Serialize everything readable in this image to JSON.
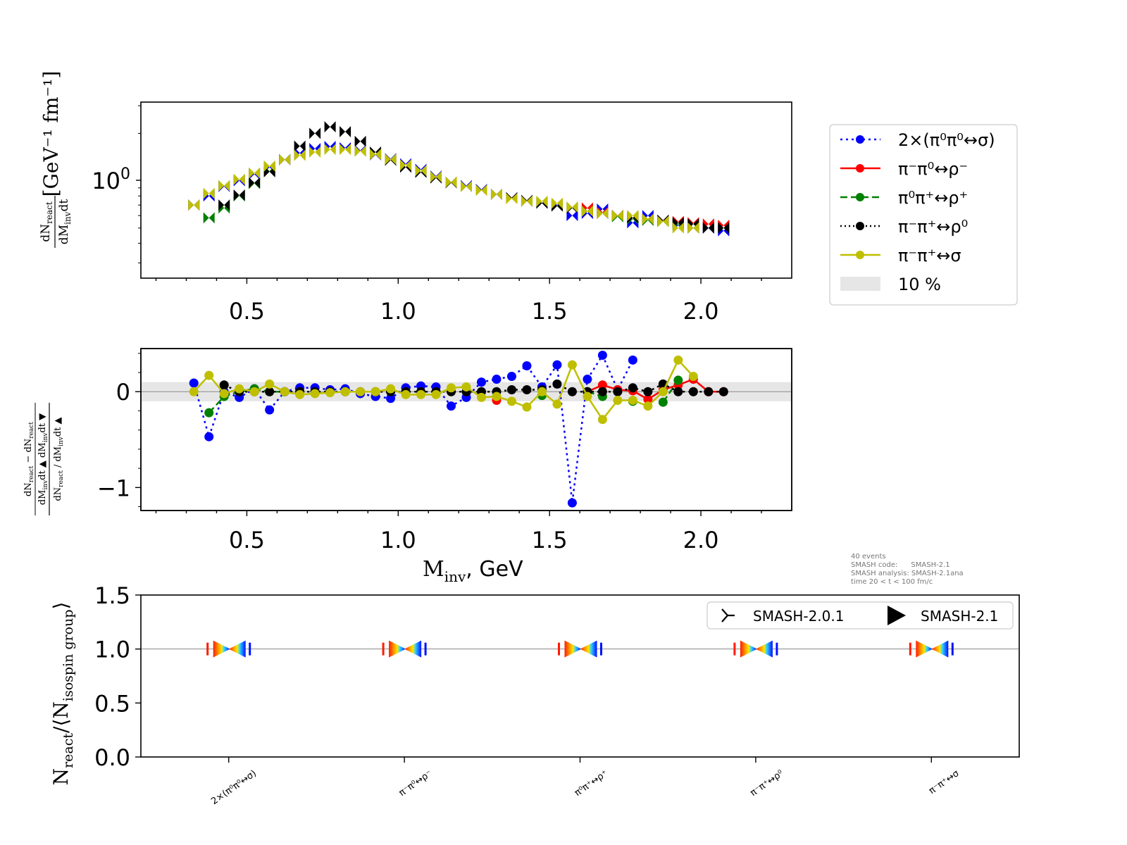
{
  "colors": {
    "sigma0": "#0000ff",
    "rho_minus": "#ff0000",
    "rho_plus": "#008000",
    "rho0": "#000000",
    "sigma_pm": "#bfbf00",
    "band": "#e6e6e6"
  },
  "chart_data": [
    {
      "type": "scatter",
      "panel": "top",
      "title": "",
      "ylabel": "dN_react/dM_inv dt [GeV^-1 fm^-1]",
      "ylabel_unit": "[GeV⁻¹ fm⁻¹]",
      "yscale": "log",
      "ytick_label": "10",
      "ytick_exp": "0",
      "xlim": [
        0.15,
        2.3
      ],
      "ylim_log10": [
        -0.62,
        0.5
      ],
      "x_ticks": [
        "0.5",
        "1.0",
        "1.5",
        "2.0"
      ],
      "x": [
        0.325,
        0.375,
        0.425,
        0.475,
        0.525,
        0.575,
        0.625,
        0.675,
        0.725,
        0.775,
        0.825,
        0.875,
        0.925,
        0.975,
        1.025,
        1.075,
        1.125,
        1.175,
        1.225,
        1.275,
        1.325,
        1.375,
        1.425,
        1.475,
        1.525,
        1.575,
        1.625,
        1.675,
        1.725,
        1.775,
        1.825,
        1.875,
        1.925,
        1.975,
        2.025,
        2.075
      ],
      "series": [
        {
          "name": "sigma0",
          "label": "2×(π⁰π⁰↔σ)",
          "color": "#0000ff",
          "values": [
            0.7,
            0.8,
            0.92,
            1.0,
            1.1,
            1.22,
            1.36,
            1.5,
            1.6,
            1.65,
            1.62,
            1.56,
            1.46,
            1.38,
            1.28,
            1.18,
            1.07,
            0.98,
            0.93,
            0.88,
            0.82,
            0.78,
            0.74,
            0.72,
            0.7,
            0.6,
            0.62,
            0.66,
            0.6,
            0.54,
            0.6,
            0.56,
            0.52,
            0.5,
            0.5,
            0.48
          ]
        },
        {
          "name": "rho_minus",
          "label": "π⁻π⁰↔ρ⁻",
          "color": "#ff0000",
          "values": [
            null,
            null,
            null,
            null,
            null,
            null,
            null,
            null,
            null,
            null,
            null,
            null,
            null,
            null,
            null,
            null,
            null,
            null,
            null,
            null,
            null,
            null,
            null,
            null,
            null,
            null,
            0.67,
            0.63,
            0.6,
            0.58,
            0.57,
            0.56,
            0.55,
            0.54,
            0.53,
            0.52
          ]
        },
        {
          "name": "rho_plus",
          "label": "π⁰π⁺↔ρ⁺",
          "color": "#008000",
          "values": [
            null,
            0.58,
            0.67,
            0.8,
            0.96,
            1.15,
            null,
            null,
            null,
            null,
            null,
            null,
            null,
            null,
            null,
            null,
            null,
            null,
            null,
            null,
            null,
            null,
            null,
            null,
            null,
            null,
            0.64,
            null,
            0.59,
            0.57,
            0.56,
            0.55,
            0.53,
            null,
            null,
            null
          ]
        },
        {
          "name": "rho0",
          "label": "π⁻π⁺↔ρ⁰",
          "color": "#000000",
          "values": [
            null,
            null,
            0.7,
            0.81,
            0.97,
            1.14,
            1.36,
            1.66,
            2.0,
            2.2,
            2.05,
            1.78,
            1.52,
            1.35,
            1.22,
            1.13,
            1.04,
            0.97,
            0.92,
            0.87,
            0.82,
            0.78,
            0.75,
            0.72,
            0.69,
            0.67,
            0.64,
            0.62,
            0.6,
            0.58,
            0.57,
            0.56,
            0.54,
            0.53,
            0.5,
            0.5
          ]
        },
        {
          "name": "sigma_pm",
          "label": "π⁻π⁺↔σ",
          "color": "#bfbf00",
          "values": [
            0.7,
            0.83,
            0.93,
            1.02,
            1.12,
            1.24,
            1.36,
            1.45,
            1.52,
            1.58,
            1.58,
            1.54,
            1.47,
            1.37,
            1.26,
            1.16,
            1.06,
            0.98,
            0.92,
            0.87,
            0.82,
            0.77,
            0.74,
            0.74,
            0.72,
            0.68,
            0.64,
            0.62,
            0.6,
            0.6,
            0.57,
            0.55,
            0.5,
            0.5,
            null,
            null
          ]
        }
      ],
      "legend": {
        "entries": [
          "2×(π⁰π⁰↔σ)",
          "π⁻π⁰↔ρ⁻",
          "π⁰π⁺↔ρ⁺",
          "π⁻π⁺↔ρ⁰",
          "π⁻π⁺↔σ",
          "10 %"
        ],
        "placement": "right outside"
      }
    },
    {
      "type": "line",
      "panel": "middle",
      "ylabel": "(dN▲ - dN▼)/dN▲",
      "xlabel": "M",
      "xlabel_sub": "inv",
      "xlabel_unit": ", GeV",
      "xlim": [
        0.15,
        2.3
      ],
      "ylim": [
        -1.24,
        0.45
      ],
      "y_ticks": [
        "0",
        "−1"
      ],
      "x_ticks": [
        "0.5",
        "1.0",
        "1.5",
        "2.0"
      ],
      "band": [
        -0.1,
        0.1
      ],
      "x": [
        0.325,
        0.375,
        0.425,
        0.475,
        0.525,
        0.575,
        0.625,
        0.675,
        0.725,
        0.775,
        0.825,
        0.875,
        0.925,
        0.975,
        1.025,
        1.075,
        1.125,
        1.175,
        1.225,
        1.275,
        1.325,
        1.375,
        1.425,
        1.475,
        1.525,
        1.575,
        1.625,
        1.675,
        1.725,
        1.775,
        1.825,
        1.875,
        1.925,
        1.975,
        2.025,
        2.075
      ],
      "series": [
        {
          "name": "sigma0",
          "color": "#0000ff",
          "style": "dotted",
          "values": [
            0.09,
            -0.47,
            0.0,
            -0.06,
            0.03,
            -0.19,
            0.0,
            0.04,
            0.04,
            0.02,
            0.03,
            -0.02,
            -0.05,
            -0.07,
            0.04,
            0.06,
            0.05,
            -0.15,
            -0.06,
            0.1,
            0.13,
            0.16,
            0.27,
            0.05,
            0.28,
            -1.16,
            0.13,
            0.38,
            0.02,
            0.33,
            null,
            null,
            null,
            null,
            null,
            null
          ]
        },
        {
          "name": "rho_minus",
          "color": "#ff0000",
          "style": "solid",
          "values": [
            null,
            null,
            null,
            null,
            null,
            null,
            null,
            null,
            null,
            null,
            null,
            null,
            null,
            null,
            null,
            null,
            null,
            null,
            null,
            null,
            -0.09,
            null,
            null,
            null,
            null,
            null,
            0.0,
            0.07,
            0.02,
            0.01,
            -0.08,
            0.02,
            0.07,
            0.13,
            0.0,
            0.0
          ]
        },
        {
          "name": "rho_plus",
          "color": "#008000",
          "style": "dashed",
          "values": [
            null,
            -0.22,
            -0.05,
            0.0,
            0.03,
            0.0,
            0.0,
            0.0,
            null,
            null,
            null,
            null,
            null,
            null,
            null,
            null,
            null,
            null,
            null,
            null,
            null,
            null,
            null,
            -0.04,
            null,
            null,
            0.0,
            -0.05,
            null,
            -0.1,
            null,
            -0.11,
            0.12,
            null,
            null,
            null
          ]
        },
        {
          "name": "rho0",
          "color": "#000000",
          "style": "dotted",
          "values": [
            null,
            null,
            0.07,
            0.0,
            0.0,
            0.0,
            0.0,
            0.0,
            0.0,
            0.0,
            0.0,
            0.0,
            0.0,
            0.0,
            0.0,
            0.0,
            0.0,
            0.0,
            0.0,
            0.0,
            0.0,
            0.02,
            0.02,
            0.02,
            0.08,
            0.0,
            0.0,
            0.0,
            0.0,
            0.04,
            0.0,
            0.08,
            0.0,
            0.0,
            0.0,
            0.0
          ]
        },
        {
          "name": "sigma_pm",
          "color": "#bfbf00",
          "style": "solid",
          "values": [
            0.0,
            0.17,
            -0.02,
            0.03,
            0.0,
            0.08,
            0.0,
            -0.03,
            -0.02,
            -0.01,
            0.0,
            0.0,
            0.0,
            0.03,
            -0.03,
            -0.03,
            -0.03,
            0.04,
            0.05,
            -0.06,
            -0.05,
            -0.1,
            -0.16,
            0.0,
            -0.13,
            0.28,
            -0.05,
            -0.29,
            -0.09,
            -0.09,
            -0.15,
            0.0,
            0.33,
            0.16,
            null,
            null
          ]
        }
      ]
    },
    {
      "type": "scatter",
      "panel": "bottom",
      "ylabel": "N_react/⟨N_isospin group⟩",
      "ylim": [
        0.0,
        1.5
      ],
      "y_ticks": [
        "0.0",
        "0.5",
        "1.0",
        "1.5"
      ],
      "categories": [
        "2×(π⁰π⁰↔σ)",
        "π⁻π⁰↔ρ⁻",
        "π⁰π⁺↔ρ⁺",
        "π⁻π⁺↔ρ⁰",
        "π⁻π⁺↔σ"
      ],
      "values": [
        1.0,
        1.0,
        1.0,
        1.0,
        1.0
      ],
      "legend": [
        "SMASH-2.0.1",
        "SMASH-2.1"
      ],
      "legend_placement": "top-right"
    }
  ],
  "annotation": {
    "lines": [
      "40 events",
      "SMASH code:      SMASH-2.1",
      "SMASH analysis: SMASH-2.1ana",
      "time 20 < t < 100 fm/c"
    ]
  }
}
